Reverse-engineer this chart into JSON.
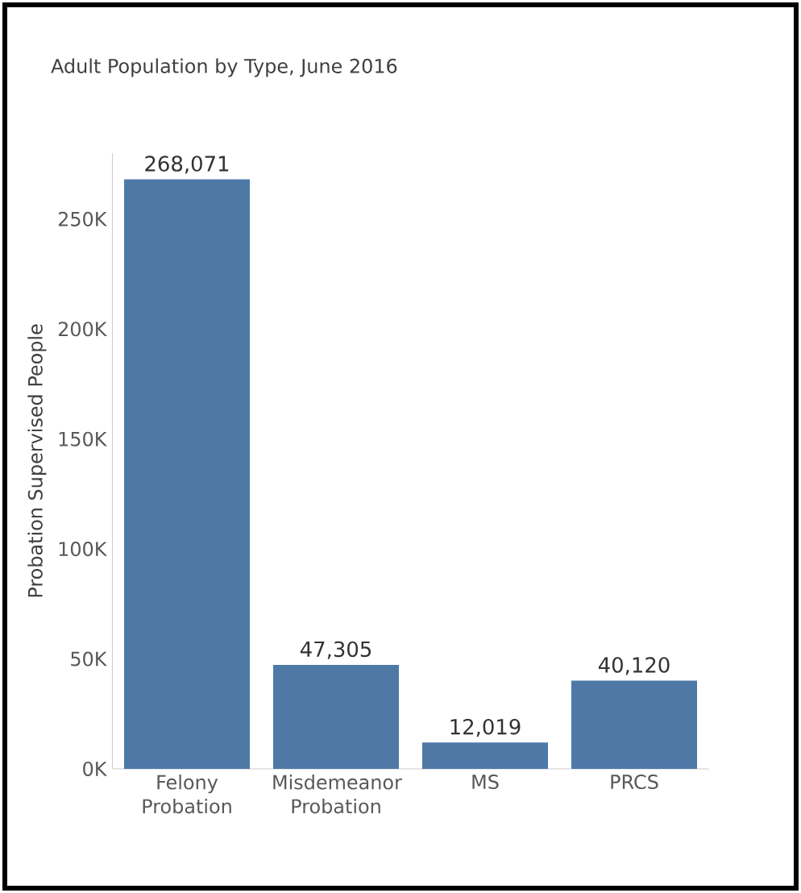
{
  "chart_data": {
    "type": "bar",
    "title": "Adult Population by Type, June 2016",
    "ylabel": "Probation Supervised People",
    "categories": [
      "Felony Probation",
      "Misdemeanor Probation",
      "MS",
      "PRCS"
    ],
    "values": [
      268071,
      47305,
      12019,
      40120
    ],
    "value_labels": [
      "268,071",
      "47,305",
      "12,019",
      "40,120"
    ],
    "color": "#4e79a7",
    "ylim": [
      0,
      280000
    ],
    "yticks": [
      {
        "value": 0,
        "label": "0K"
      },
      {
        "value": 50000,
        "label": "50K"
      },
      {
        "value": 100000,
        "label": "100K"
      },
      {
        "value": 150000,
        "label": "150K"
      },
      {
        "value": 200000,
        "label": "200K"
      },
      {
        "value": 250000,
        "label": "250K"
      }
    ]
  }
}
